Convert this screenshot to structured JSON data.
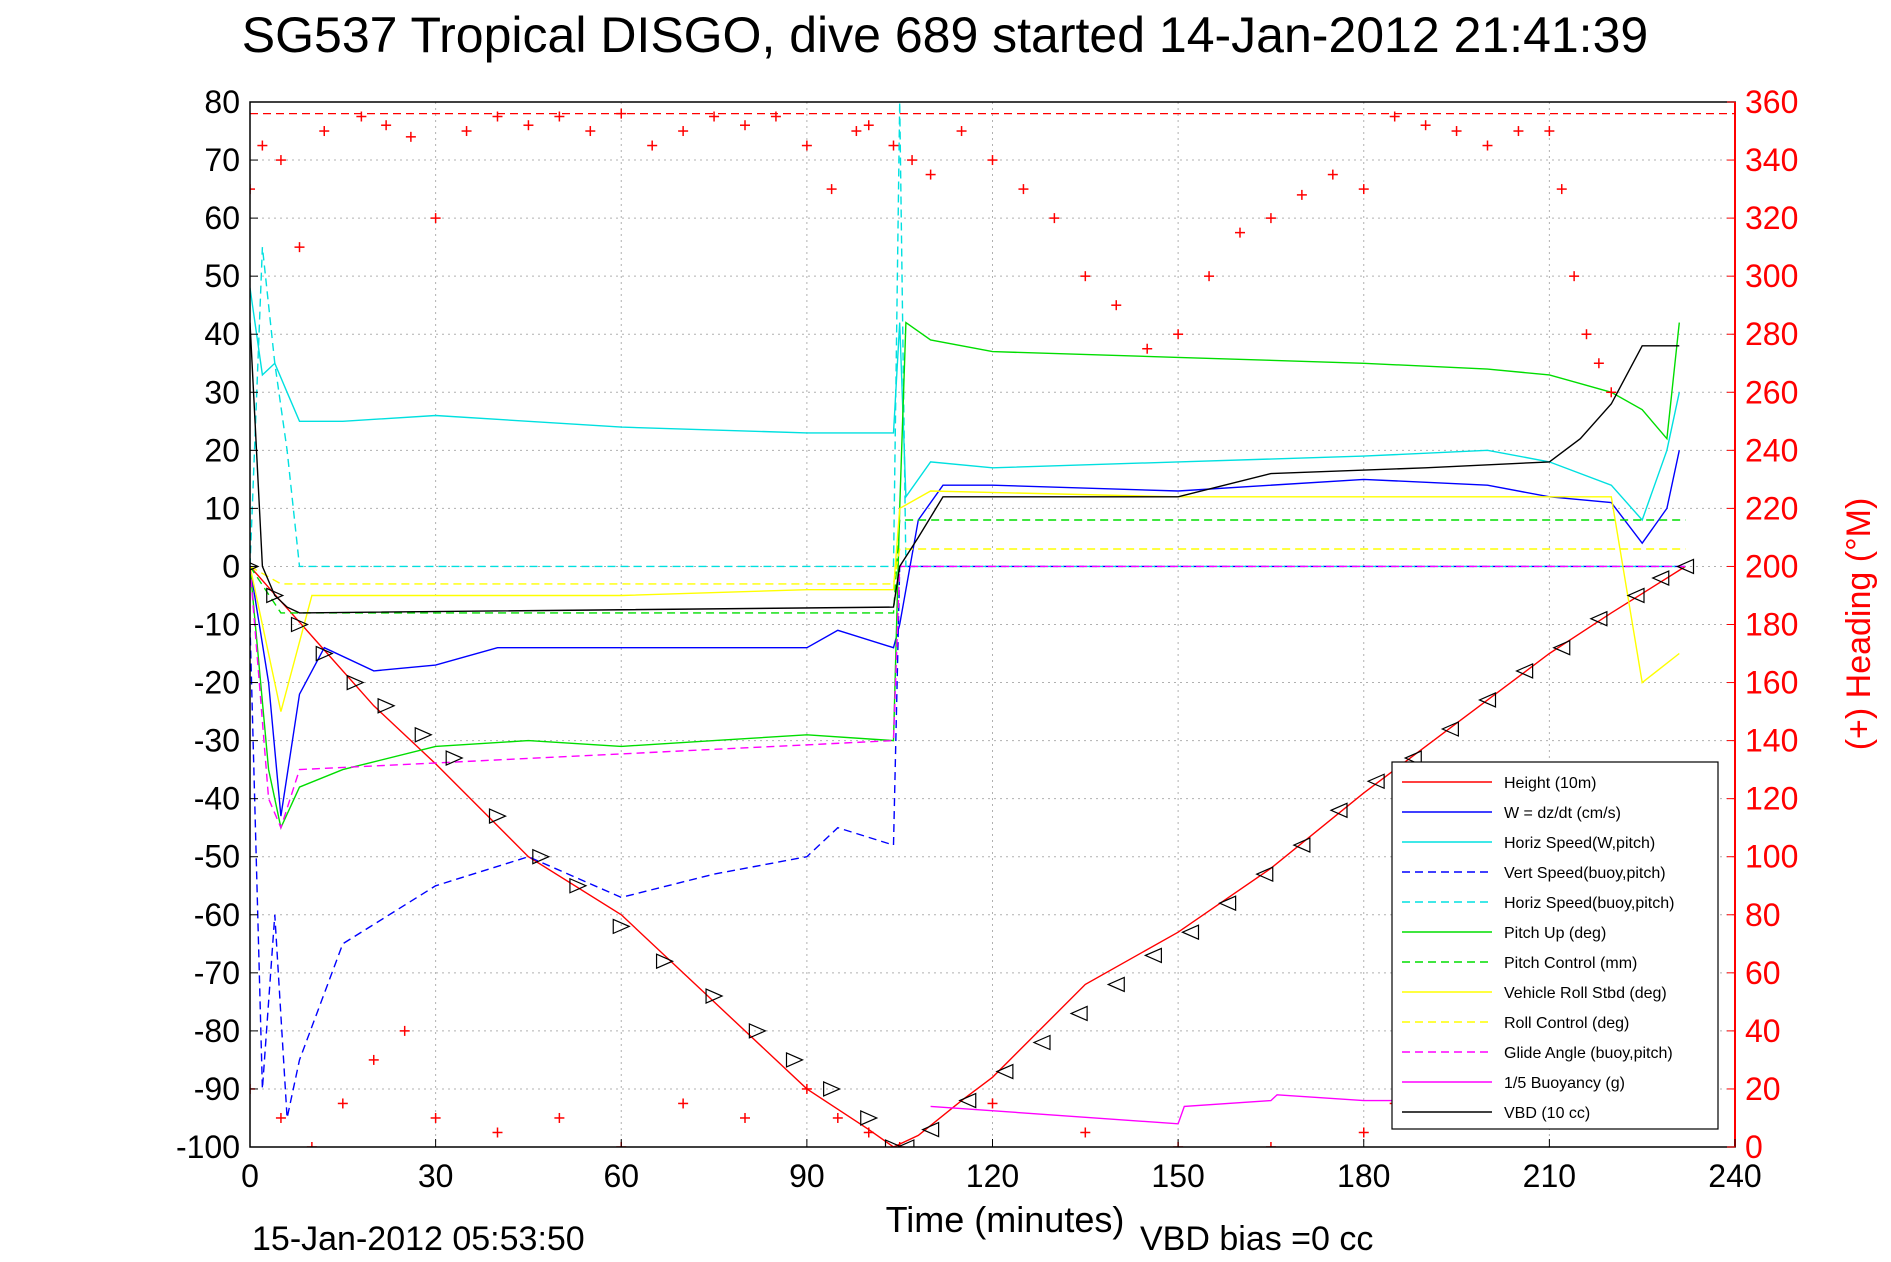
{
  "chart_data": {
    "type": "line",
    "title": "SG537 Tropical DISGO, dive 689 started 14-Jan-2012 21:41:39",
    "xlabel": "Time (minutes)",
    "ylabel_right": "(+) Heading (°M)",
    "xlim": [
      0,
      240
    ],
    "ylim_left": [
      -100,
      80
    ],
    "ylim_right": [
      0,
      360
    ],
    "x_ticks": [
      "0",
      "30",
      "60",
      "90",
      "120",
      "150",
      "180",
      "210",
      "240"
    ],
    "y_ticks_left": [
      "80",
      "70",
      "60",
      "50",
      "40",
      "30",
      "20",
      "10",
      "0",
      "-10",
      "-20",
      "-30",
      "-40",
      "-50",
      "-60",
      "-70",
      "-80",
      "-90",
      "-100"
    ],
    "y_ticks_right": [
      "360",
      "340",
      "320",
      "300",
      "280",
      "260",
      "240",
      "220",
      "200",
      "180",
      "160",
      "140",
      "120",
      "100",
      "80",
      "60",
      "40",
      "20",
      "0"
    ],
    "grid": true,
    "legend_position": "bottom-right",
    "footer_left": "15-Jan-2012 05:53:50",
    "footer_right": "VBD bias =0 cc",
    "series": [
      {
        "name": "Height (10m)",
        "color": "#ff0000",
        "dash": "solid",
        "x": [
          0,
          5,
          10,
          20,
          30,
          45,
          60,
          75,
          90,
          100,
          104,
          108,
          115,
          120,
          135,
          150,
          165,
          180,
          195,
          210,
          220,
          232
        ],
        "y": [
          0,
          -6,
          -12,
          -24,
          -34,
          -50,
          -60,
          -75,
          -90,
          -97,
          -100,
          -98,
          -92,
          -88,
          -72,
          -63,
          -52,
          -39,
          -27,
          -15,
          -8,
          0
        ]
      },
      {
        "name": "W = dz/dt (cm/s)",
        "color": "#0000ff",
        "dash": "solid",
        "x": [
          0,
          3,
          5,
          8,
          12,
          20,
          30,
          40,
          60,
          80,
          90,
          95,
          104,
          105,
          108,
          112,
          120,
          150,
          180,
          200,
          210,
          220,
          225,
          229,
          231
        ],
        "y": [
          0,
          -20,
          -43,
          -22,
          -14,
          -18,
          -17,
          -14,
          -14,
          -14,
          -14,
          -11,
          -14,
          -10,
          8,
          14,
          14,
          13,
          15,
          14,
          12,
          11,
          4,
          10,
          20
        ]
      },
      {
        "name": "Horiz Speed(W,pitch)",
        "color": "#00e0e0",
        "dash": "solid",
        "x": [
          0,
          2,
          4,
          6,
          8,
          15,
          30,
          60,
          90,
          104,
          105,
          106,
          110,
          120,
          150,
          180,
          200,
          210,
          220,
          225,
          229,
          231
        ],
        "y": [
          48,
          33,
          35,
          30,
          25,
          25,
          26,
          24,
          23,
          23,
          42,
          12,
          18,
          17,
          18,
          19,
          20,
          18,
          14,
          8,
          20,
          30
        ]
      },
      {
        "name": "Vert Speed(buoy,pitch)",
        "color": "#0000ff",
        "dash": "dashed",
        "x": [
          0,
          2,
          4,
          6,
          8,
          15,
          30,
          45,
          60,
          75,
          90,
          95,
          104,
          105,
          108,
          232
        ],
        "y": [
          -10,
          -90,
          -60,
          -95,
          -85,
          -65,
          -55,
          -50,
          -57,
          -53,
          -50,
          -45,
          -48,
          0,
          0,
          0
        ]
      },
      {
        "name": "Horiz Speed(buoy,pitch)",
        "color": "#00e0e0",
        "dash": "dashed",
        "x": [
          0,
          2,
          4,
          6,
          8,
          104,
          105,
          106,
          108,
          232
        ],
        "y": [
          0,
          55,
          35,
          20,
          0,
          0,
          80,
          0,
          0,
          0
        ]
      },
      {
        "name": "Pitch Up (deg)",
        "color": "#00dd00",
        "dash": "solid",
        "x": [
          0,
          3,
          5,
          8,
          15,
          30,
          45,
          60,
          75,
          90,
          104,
          105,
          106,
          110,
          120,
          150,
          180,
          200,
          210,
          220,
          225,
          229,
          231
        ],
        "y": [
          0,
          -35,
          -45,
          -38,
          -35,
          -31,
          -30,
          -31,
          -30,
          -29,
          -30,
          10,
          42,
          39,
          37,
          36,
          35,
          34,
          33,
          30,
          27,
          22,
          42
        ]
      },
      {
        "name": "Pitch Control (mm)",
        "color": "#00dd00",
        "dash": "dashed",
        "x": [
          0,
          5,
          8,
          104,
          105,
          108,
          210,
          220,
          232
        ],
        "y": [
          0,
          -8,
          -8,
          -8,
          8,
          8,
          8,
          8,
          8
        ]
      },
      {
        "name": "Vehicle Roll Stbd (deg)",
        "color": "#ffff00",
        "dash": "solid",
        "x": [
          0,
          5,
          10,
          20,
          30,
          60,
          90,
          104,
          105,
          110,
          150,
          180,
          200,
          210,
          220,
          225,
          231
        ],
        "y": [
          0,
          -25,
          -5,
          -5,
          -5,
          -5,
          -4,
          -4,
          10,
          13,
          12,
          12,
          12,
          12,
          12,
          -20,
          -15
        ]
      },
      {
        "name": "Roll Control (deg)",
        "color": "#ffff00",
        "dash": "dashed",
        "x": [
          0,
          5,
          104,
          105,
          232
        ],
        "y": [
          0,
          -3,
          -3,
          3,
          3
        ]
      },
      {
        "name": "Glide Angle (buoy,pitch)",
        "color": "#ff00ff",
        "dash": "dashed",
        "x": [
          0,
          3,
          5,
          8,
          104,
          105,
          232
        ],
        "y": [
          0,
          -40,
          -45,
          -35,
          -30,
          0,
          0
        ]
      },
      {
        "name": "1/5 Buoyancy (g)",
        "color": "#ff00ff",
        "dash": "solid",
        "x": [
          110,
          150,
          151,
          165,
          166,
          180,
          185
        ],
        "y": [
          -93,
          -96,
          -93,
          -92,
          -91,
          -92,
          -92
        ]
      },
      {
        "name": "VBD (10 cc)",
        "color": "#000000",
        "dash": "solid",
        "x": [
          0,
          2,
          4,
          6,
          8,
          104,
          105,
          108,
          112,
          150,
          165,
          190,
          210,
          215,
          220,
          225,
          231
        ],
        "y": [
          42,
          0,
          -5,
          -7,
          -8,
          -7,
          0,
          5,
          12,
          12,
          16,
          17,
          18,
          22,
          28,
          38,
          38
        ]
      }
    ],
    "heading_series": {
      "name": "(+) Heading (°M)",
      "color": "#ff0000",
      "marker": "plus",
      "dashed_reference": 356,
      "x": [
        0,
        2,
        5,
        8,
        12,
        18,
        22,
        26,
        30,
        35,
        40,
        45,
        50,
        55,
        60,
        65,
        70,
        75,
        80,
        85,
        90,
        94,
        98,
        100,
        104,
        107,
        110,
        115,
        120,
        125,
        130,
        135,
        140,
        145,
        150,
        155,
        160,
        165,
        170,
        175,
        180,
        185,
        190,
        195,
        200,
        205,
        210,
        212,
        214,
        216,
        218,
        220
      ],
      "y": [
        330,
        345,
        340,
        310,
        350,
        355,
        352,
        348,
        320,
        350,
        355,
        352,
        355,
        350,
        356,
        345,
        350,
        355,
        352,
        355,
        345,
        330,
        350,
        352,
        345,
        340,
        335,
        350,
        340,
        330,
        320,
        300,
        290,
        275,
        280,
        300,
        315,
        320,
        328,
        335,
        330,
        355,
        352,
        350,
        345,
        350,
        350,
        330,
        300,
        280,
        270,
        260
      ]
    },
    "heading_lower_cluster": {
      "x": [
        0,
        5,
        10,
        15,
        20,
        25,
        30,
        40,
        50,
        60,
        70,
        80,
        90,
        95,
        100,
        105,
        120,
        135,
        150,
        165,
        180,
        185,
        190
      ],
      "y": [
        20,
        10,
        0,
        15,
        30,
        40,
        10,
        5,
        10,
        0,
        15,
        10,
        20,
        10,
        5,
        0,
        15,
        5,
        0,
        0,
        5,
        15,
        10
      ]
    },
    "triangle_markers": {
      "x": [
        0,
        4,
        8,
        12,
        17,
        22,
        28,
        33,
        40,
        47,
        53,
        60,
        67,
        75,
        82,
        88,
        94,
        100,
        104,
        106,
        110,
        116,
        122,
        128,
        134,
        140,
        146,
        152,
        158,
        164,
        170,
        176,
        182,
        188,
        194,
        200,
        206,
        212,
        218,
        224,
        228,
        232
      ],
      "y": [
        0,
        -5,
        -10,
        -15,
        -20,
        -24,
        -29,
        -33,
        -43,
        -50,
        -55,
        -62,
        -68,
        -74,
        -80,
        -85,
        -90,
        -95,
        -100,
        -100,
        -97,
        -92,
        -87,
        -82,
        -77,
        -72,
        -67,
        -63,
        -58,
        -53,
        -48,
        -42,
        -37,
        -33,
        -28,
        -23,
        -18,
        -14,
        -9,
        -5,
        -2,
        0
      ]
    }
  }
}
